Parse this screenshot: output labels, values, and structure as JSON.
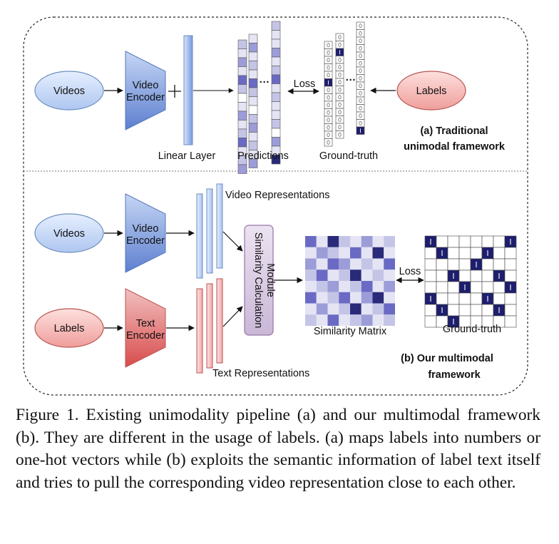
{
  "panel_a": {
    "videos_label": "Videos",
    "encoder_label_line1": "Video",
    "encoder_label_line2": "Encoder",
    "linear_layer_label": "Linear Layer",
    "predictions_label": "Predictions",
    "loss_label": "Loss",
    "ground_truth_label": "Ground-truth",
    "labels_label": "Labels",
    "title_line1": "(a) Traditional",
    "title_line2": "unimodal framework",
    "ellipsis": "···"
  },
  "panel_b": {
    "videos_label": "Videos",
    "labels_label": "Labels",
    "video_encoder_line1": "Video",
    "video_encoder_line2": "Encoder",
    "text_encoder_line1": "Text",
    "text_encoder_line2": "Encoder",
    "video_representations_label": "Video Representations",
    "text_representations_label": "Text Representations",
    "module_label_line1": "Similarity Calculation",
    "module_label_line2": "Module",
    "similarity_matrix_label": "Similarity Matrix",
    "loss_label": "Loss",
    "ground_truth_label": "Ground-truth",
    "title_line1": "(b) Our multimodal",
    "title_line2": "framework"
  },
  "caption": "Figure 1. Existing unimodality pipeline (a) and our multimodal framework (b). They are different in the usage of labels. (a) maps labels into numbers or one-hot vectors while (b) exploits the se­mantic information of label text itself and tries to pull the corre­sponding video representation close to each other.",
  "colors": {
    "video_blue": "#6f8fd8",
    "video_ellipse": "#dae8fc",
    "text_red": "#e46666",
    "label_ellipse": "#f8cecc",
    "module_purple": "#e1d5e7",
    "matrix_dark": "#1e1e6e",
    "matrix_mid": "#8a8ad0",
    "matrix_light": "#c8c8ea"
  }
}
